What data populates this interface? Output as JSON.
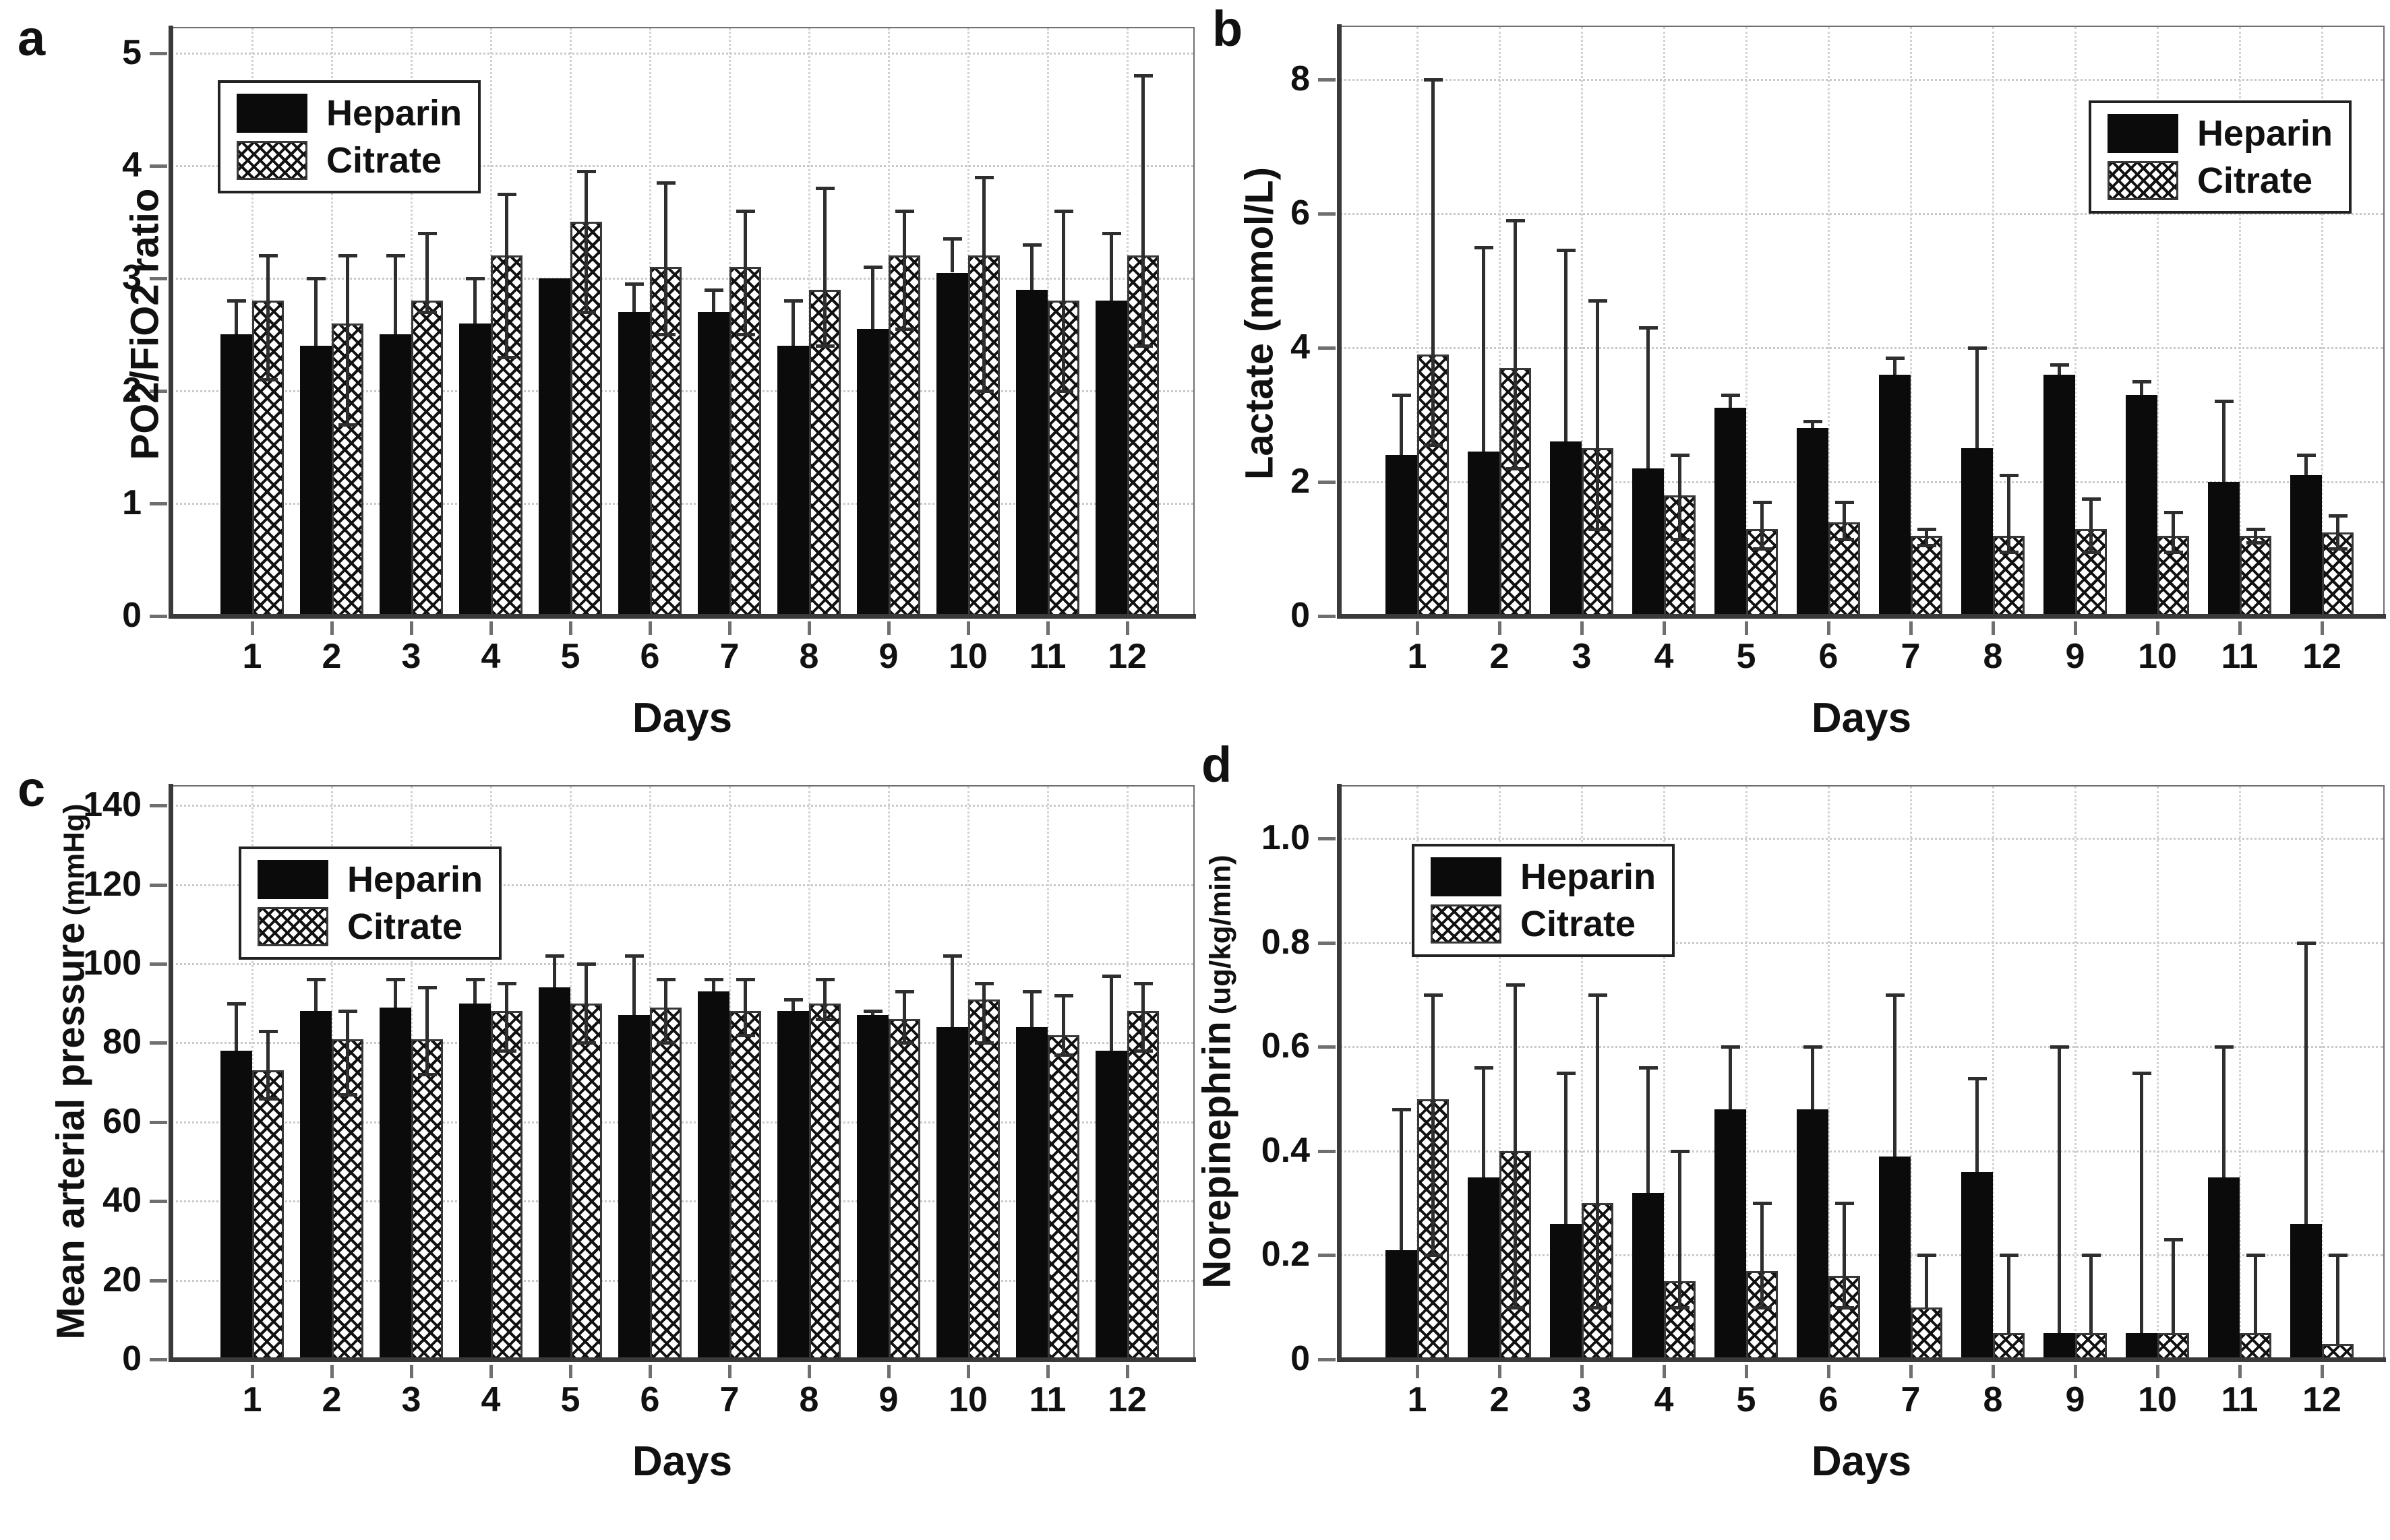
{
  "figure_xlabel": "Days",
  "series_names": [
    "Heparin",
    "Citrate"
  ],
  "colors": {
    "heparin_fill": "#0b0b0b",
    "citrate_pattern": "black-crosshatch-on-white",
    "axis": "#3a3a3a",
    "gridline": "#c9c9c9"
  },
  "chart_data": [
    {
      "panel_letter": "a",
      "type": "bar",
      "ylabel": "PO2/FiO2 ratio",
      "ylabel_unit": "",
      "xlabel": "Days",
      "categories": [
        "1",
        "2",
        "3",
        "4",
        "5",
        "6",
        "7",
        "8",
        "9",
        "10",
        "11",
        "12"
      ],
      "yticks": [
        "0",
        "1",
        "2",
        "3",
        "4",
        "5"
      ],
      "ylim": [
        0,
        5.22
      ],
      "grid": true,
      "legend_position": "top-left",
      "series": [
        {
          "name": "Heparin",
          "fill": "solid-black",
          "values": [
            2.5,
            2.4,
            2.5,
            2.6,
            3.0,
            2.7,
            2.7,
            2.4,
            2.55,
            3.05,
            2.9,
            2.8
          ],
          "err_up": [
            2.8,
            3.0,
            3.2,
            3.0,
            null,
            2.95,
            2.9,
            2.8,
            3.1,
            3.35,
            3.3,
            3.4
          ],
          "err_lo": [
            null,
            null,
            null,
            null,
            null,
            null,
            null,
            null,
            null,
            null,
            null,
            null
          ]
        },
        {
          "name": "Citrate",
          "fill": "crosshatch",
          "values": [
            2.8,
            2.6,
            2.8,
            3.2,
            3.5,
            3.1,
            3.1,
            2.9,
            3.2,
            3.2,
            2.8,
            3.2
          ],
          "err_up": [
            3.2,
            3.2,
            3.4,
            3.75,
            3.95,
            3.85,
            3.6,
            3.8,
            3.6,
            3.9,
            3.6,
            4.8
          ],
          "err_lo": [
            2.1,
            1.7,
            2.7,
            2.3,
            2.7,
            2.5,
            2.5,
            2.4,
            2.55,
            2.0,
            2.0,
            2.4
          ]
        }
      ]
    },
    {
      "panel_letter": "b",
      "type": "bar",
      "ylabel": "Lactate (mmol/L)",
      "ylabel_unit": "",
      "xlabel": "Days",
      "categories": [
        "1",
        "2",
        "3",
        "4",
        "5",
        "6",
        "7",
        "8",
        "9",
        "10",
        "11",
        "12"
      ],
      "yticks": [
        "0",
        "2",
        "4",
        "6",
        "8"
      ],
      "ylim": [
        0,
        8.78
      ],
      "grid": true,
      "legend_position": "top-right",
      "series": [
        {
          "name": "Heparin",
          "fill": "solid-black",
          "values": [
            2.4,
            2.45,
            2.6,
            2.2,
            3.1,
            2.8,
            3.6,
            2.5,
            3.6,
            3.3,
            2.0,
            2.1
          ],
          "err_up": [
            3.3,
            5.5,
            5.45,
            4.3,
            3.3,
            2.9,
            3.85,
            4.0,
            3.75,
            3.5,
            3.2,
            2.4
          ],
          "err_lo": [
            null,
            null,
            null,
            null,
            null,
            null,
            null,
            null,
            null,
            null,
            null,
            null
          ]
        },
        {
          "name": "Citrate",
          "fill": "crosshatch",
          "values": [
            3.9,
            3.7,
            2.5,
            1.8,
            1.3,
            1.4,
            1.2,
            1.2,
            1.3,
            1.2,
            1.2,
            1.25
          ],
          "err_up": [
            8.0,
            5.9,
            4.7,
            2.4,
            1.7,
            1.7,
            1.3,
            2.1,
            1.75,
            1.55,
            1.3,
            1.5
          ],
          "err_lo": [
            2.55,
            2.2,
            1.3,
            1.15,
            1.0,
            1.15,
            1.05,
            0.95,
            0.95,
            0.95,
            1.1,
            1.0
          ]
        }
      ]
    },
    {
      "panel_letter": "c",
      "type": "bar",
      "ylabel": "Mean arterial pressure",
      "ylabel_unit": "(mmHg)",
      "xlabel": "Days",
      "categories": [
        "1",
        "2",
        "3",
        "4",
        "5",
        "6",
        "7",
        "8",
        "9",
        "10",
        "11",
        "12"
      ],
      "yticks": [
        "0",
        "20",
        "40",
        "60",
        "80",
        "100",
        "120",
        "140"
      ],
      "ylim": [
        0,
        144.8
      ],
      "grid": true,
      "legend_position": "top-left",
      "series": [
        {
          "name": "Heparin",
          "fill": "solid-black",
          "values": [
            78,
            88,
            89,
            90,
            94,
            87,
            93,
            88,
            87,
            84,
            84,
            78
          ],
          "err_up": [
            90,
            96,
            96,
            96,
            102,
            102,
            96,
            91,
            88,
            102,
            93,
            97
          ],
          "err_lo": [
            null,
            null,
            null,
            null,
            null,
            null,
            null,
            null,
            null,
            null,
            null,
            null
          ]
        },
        {
          "name": "Citrate",
          "fill": "crosshatch",
          "values": [
            73,
            81,
            81,
            88,
            90,
            89,
            88,
            90,
            86,
            91,
            82,
            88
          ],
          "err_up": [
            83,
            88,
            94,
            95,
            100,
            96,
            96,
            96,
            93,
            95,
            92,
            95
          ],
          "err_lo": [
            66,
            67,
            72,
            78,
            80,
            80,
            82,
            86,
            80,
            80,
            77,
            78
          ]
        }
      ]
    },
    {
      "panel_letter": "d",
      "type": "bar",
      "ylabel": "Norepinephrin",
      "ylabel_unit": "(ug/kg/min)",
      "xlabel": "Days",
      "categories": [
        "1",
        "2",
        "3",
        "4",
        "5",
        "6",
        "7",
        "8",
        "9",
        "10",
        "11",
        "12"
      ],
      "yticks": [
        "0",
        "0.2",
        "0.4",
        "0.6",
        "0.8",
        "1.0"
      ],
      "ylim": [
        0,
        1.1
      ],
      "grid": true,
      "legend_position": "top-left",
      "series": [
        {
          "name": "Heparin",
          "fill": "solid-black",
          "values": [
            0.21,
            0.35,
            0.26,
            0.32,
            0.48,
            0.48,
            0.39,
            0.36,
            0.05,
            0.05,
            0.35,
            0.26
          ],
          "err_up": [
            0.48,
            0.56,
            0.55,
            0.56,
            0.6,
            0.6,
            0.7,
            0.54,
            0.6,
            0.55,
            0.6,
            0.8
          ],
          "err_lo": [
            null,
            null,
            null,
            null,
            null,
            null,
            null,
            null,
            null,
            null,
            null,
            null
          ]
        },
        {
          "name": "Citrate",
          "fill": "crosshatch",
          "values": [
            0.5,
            0.4,
            0.3,
            0.15,
            0.17,
            0.16,
            0.1,
            0.05,
            0.05,
            0.05,
            0.05,
            0.03
          ],
          "err_up": [
            0.7,
            0.72,
            0.7,
            0.4,
            0.3,
            0.3,
            0.2,
            0.2,
            0.2,
            0.23,
            0.2,
            0.2
          ],
          "err_lo": [
            0.2,
            0.1,
            0.1,
            0.1,
            0.1,
            0.1,
            null,
            null,
            null,
            null,
            null,
            null
          ]
        }
      ]
    }
  ]
}
